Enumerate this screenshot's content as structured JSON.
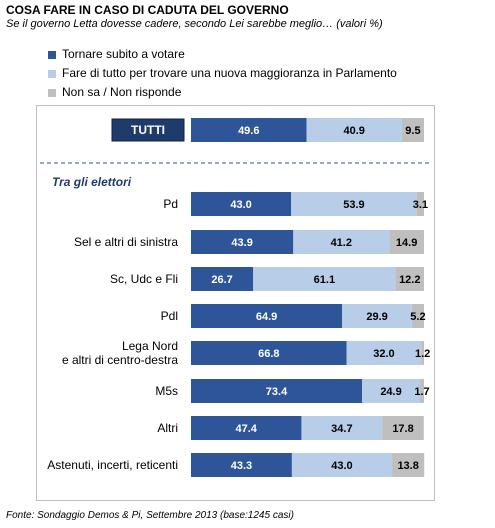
{
  "title": "COSA FARE IN CASO DI CADUTA DEL GOVERNO",
  "subtitle": "Se il governo Letta dovesse cadere, secondo Lei sarebbe meglio… (valori %)",
  "footer": "Fonte: Sondaggio Demos & Pi, Settembre 2013 (base:1245 casi)",
  "colors": {
    "vote": "#2e5597",
    "majority": "#b7cde8",
    "dontknow": "#bfbfbf",
    "tutti_box": "#1f3b6b",
    "divider": "#2e5597"
  },
  "chart_data": {
    "type": "bar",
    "stacked": true,
    "orientation": "horizontal",
    "xlim": [
      0,
      100
    ],
    "section_label": "Tra gli elettori",
    "categories": [
      "TUTTI",
      "Pd",
      "Sel e altri di sinistra",
      "Sc, Udc e Fli",
      "Pdl",
      "Lega Nord\ne altri di centro-destra",
      "M5s",
      "Altri",
      "Astenuti, incerti, reticenti"
    ],
    "series": [
      {
        "name": "Tornare subito a votare",
        "values": [
          49.6,
          43.0,
          43.9,
          26.7,
          64.9,
          66.8,
          73.4,
          47.4,
          43.3
        ]
      },
      {
        "name": "Fare di tutto per trovare una nuova maggioranza in Parlamento",
        "values": [
          40.9,
          53.9,
          41.2,
          61.1,
          29.9,
          32.0,
          24.9,
          34.7,
          43.0
        ]
      },
      {
        "name": "Non sa / Non risponde",
        "values": [
          9.5,
          3.1,
          14.9,
          12.2,
          5.2,
          1.2,
          1.7,
          17.8,
          13.8
        ]
      }
    ],
    "legend_position": "top-left",
    "grid": false
  }
}
